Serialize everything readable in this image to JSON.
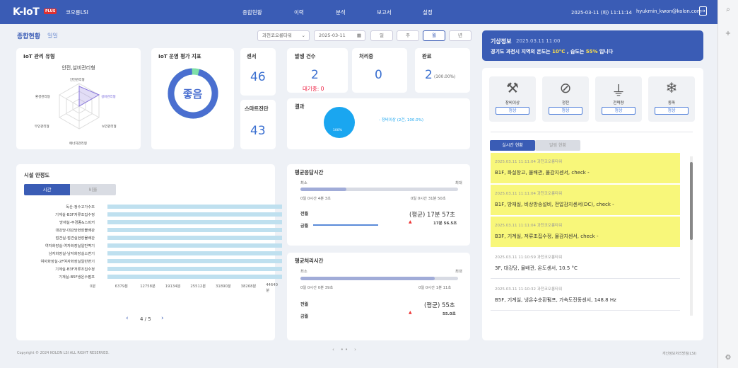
{
  "header": {
    "logo": "K-IoT",
    "plus": "PLUS",
    "brand": "코오롱LSI",
    "nav": [
      "종합현황",
      "이력",
      "분석",
      "보고서",
      "설정"
    ],
    "datetime": "2025-03-11 (화) 11:11:14",
    "user": "hyukmin_kwon@kolon.com"
  },
  "page": {
    "title": "종합현황",
    "subtitle": "일일",
    "site": "과천코오롱타워",
    "date": "2025-03-11",
    "periods": [
      "일",
      "주",
      "월",
      "년"
    ],
    "selected_period": "월"
  },
  "mgmt": {
    "title": "IoT 관리 유형",
    "radar_title": "안전,설비관리형",
    "axes": [
      "안전관리형",
      "설비관리형",
      "보건관리형",
      "에너지관리형",
      "무인관리형",
      "환경관리형"
    ]
  },
  "eval": {
    "title": "IoT 운영 평가 지표",
    "grade": "좋음",
    "value": 0.95
  },
  "sensor": {
    "label": "센서",
    "value": "46"
  },
  "diag": {
    "label": "스마트진단",
    "value": "43"
  },
  "events": {
    "label": "발생 건수",
    "value": "2",
    "waiting": "대기중: 0"
  },
  "processing": {
    "label": "처리중",
    "value": "0"
  },
  "done": {
    "label": "완료",
    "value": "2",
    "pct": "(100.00%)"
  },
  "result": {
    "label": "결과",
    "pie": "100%",
    "legend": "- 정비이상 (2건, 100.0%)"
  },
  "facility": {
    "title": "시설 안정도",
    "tabs": [
      "시간",
      "비율"
    ],
    "rows": [
      "독산-정수고가수조",
      "기계실-B3F저류조집수정",
      "방재실-주경종&스피커",
      "대강당-대강당현장몰배관",
      "접견실-접견실현장몰배관",
      "여자화장실-여자화장실일반벽기",
      "남자화장실-남자화장실소변기",
      "여자화장실-2F여자화장실일반변기",
      "기계실-B3F저류조집수정",
      "기계실-B5F냉온수펌프"
    ],
    "xticks": [
      "0분",
      "6379분",
      "12758분",
      "19134분",
      "25512분",
      "31890분",
      "38268분",
      "44640분"
    ],
    "pager": "4 / 5"
  },
  "resp": {
    "title": "평균응답시간",
    "min": "최소",
    "max": "최대",
    "minv": "0일 0시간 4분 3초",
    "maxv": "0일 0시간 31분 50초",
    "avg": "(평균) 17분 57초",
    "sub": "17분 56.5초",
    "rows": [
      "전월",
      "금월"
    ],
    "level": 0.29
  },
  "proc": {
    "title": "평균처리시간",
    "min": "최소",
    "max": "최대",
    "minv": "0일 0시간 0분 39초",
    "maxv": "0일 0시간 1분 11초",
    "avg": "(평균) 55초",
    "sub": "55.0초",
    "rows": [
      "전월",
      "금월"
    ],
    "level": 0.85
  },
  "weather": {
    "title": "기상정보",
    "time": "2025.03.11 11:00",
    "msg_a": "경기도 과천시 지역의 온도는 ",
    "temp": "10°C",
    "msg_b": " , 습도는 ",
    "hum": "55%",
    "msg_c": " 입니다"
  },
  "status": [
    {
      "name": "장비이상",
      "state": "정상"
    },
    {
      "name": "정전",
      "state": "정상"
    },
    {
      "name": "전력량",
      "state": "정상"
    },
    {
      "name": "동파",
      "state": "정상"
    }
  ],
  "feed": {
    "tabs": [
      "실시간 현황",
      "알림 현황"
    ],
    "items": [
      {
        "time": "2025.03.11 11:11:04",
        "site": "과천코오롱타워",
        "text": "B1F, 화실창고, 물배관, 물감지센서, check -",
        "hl": true
      },
      {
        "time": "2025.03.11 11:11:04",
        "site": "과천코오롱타워",
        "text": "B1F, 방재실, 비상방송설비, 전압감지센서(DC), check -",
        "hl": true
      },
      {
        "time": "2025.03.11 11:11:04",
        "site": "과천코오롱타워",
        "text": "B3F, 기계실, 저류조집수정, 물감지센서, check -",
        "hl": true
      },
      {
        "time": "2025.03.11 11:10:59",
        "site": "과천코오롱타워",
        "text": "3F, 대강당, 물배관, 온도센서, 10.5 °C",
        "hl": false
      },
      {
        "time": "2025.03.11 11:10:32",
        "site": "과천코오롱타워",
        "text": "B5F, 기계실, 냉온수순환펌프, 가속도진동센서, 148.8 Hz",
        "hl": false
      }
    ]
  },
  "footer": {
    "copy": "Copyright © 2024 KOLON LSI ALL RIGHT RESERVED.",
    "policy": "개인정보처리방침(LSI)"
  },
  "colors": {
    "header": "#3a5cb5",
    "accent": "#3a6fd0",
    "highlight": "#f8f77a",
    "bar": "#bfe0ef"
  }
}
